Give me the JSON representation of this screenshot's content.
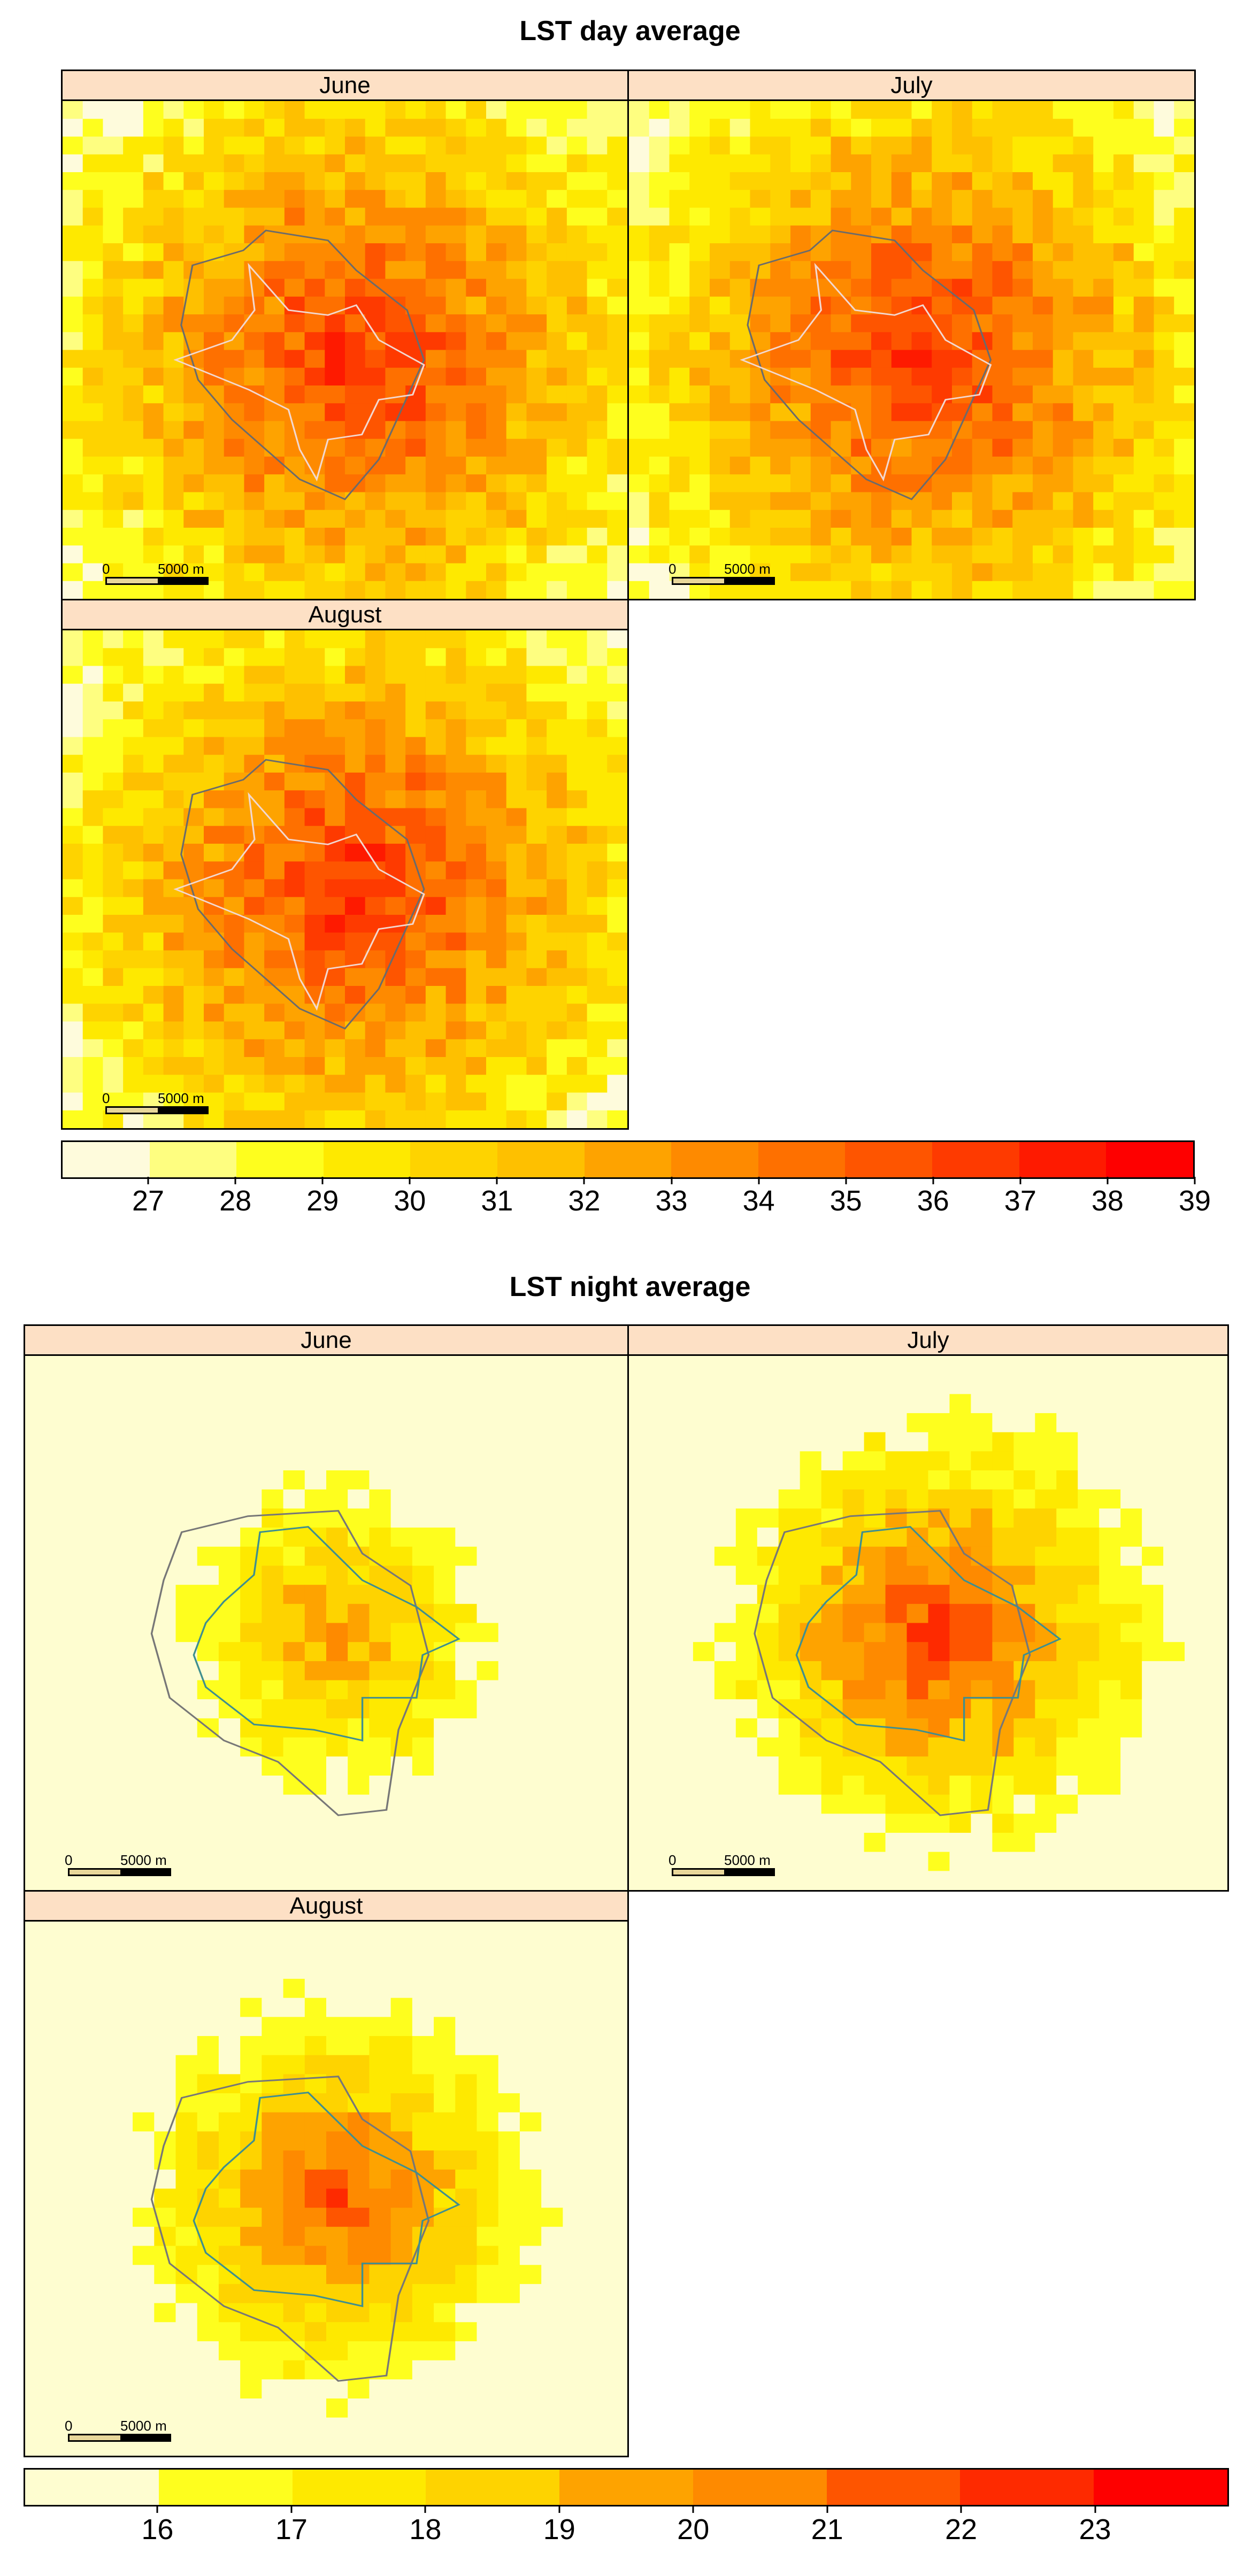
{
  "day": {
    "title": "LST day average",
    "panels": [
      {
        "label": "June",
        "scale_zero": "0",
        "scale_dist": "5000 m"
      },
      {
        "label": "July",
        "scale_zero": "0",
        "scale_dist": "5000 m"
      },
      {
        "label": "August",
        "scale_zero": "0",
        "scale_dist": "5000 m"
      }
    ],
    "legend": {
      "colors": [
        "#fefbdc",
        "#fefe80",
        "#fefe1e",
        "#fee900",
        "#fed300",
        "#fec000",
        "#fea300",
        "#fe8a00",
        "#fe7000",
        "#fe5500",
        "#fe3a00",
        "#fe1a00",
        "#fe0000"
      ],
      "ticks": [
        "27",
        "28",
        "29",
        "30",
        "31",
        "32",
        "33",
        "34",
        "35",
        "36",
        "37",
        "38",
        "39"
      ]
    }
  },
  "night": {
    "title": "LST night average",
    "panels": [
      {
        "label": "June",
        "scale_zero": "0",
        "scale_dist": "5000 m"
      },
      {
        "label": "July",
        "scale_zero": "0",
        "scale_dist": "5000 m"
      },
      {
        "label": "August",
        "scale_zero": "0",
        "scale_dist": "5000 m"
      }
    ],
    "legend": {
      "colors": [
        "#fefdd0",
        "#fefe1e",
        "#fee900",
        "#fed300",
        "#fea300",
        "#fe8a00",
        "#fe5500",
        "#fe2a00",
        "#fe0000"
      ],
      "ticks": [
        "16",
        "17",
        "18",
        "19",
        "20",
        "21",
        "22",
        "23"
      ]
    }
  }
}
